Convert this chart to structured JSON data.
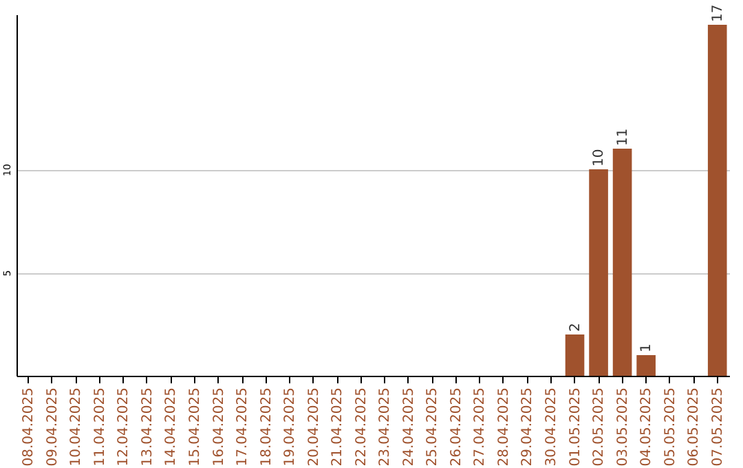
{
  "chart_data": {
    "type": "bar",
    "categories": [
      "08.04.2025",
      "09.04.2025",
      "10.04.2025",
      "11.04.2025",
      "12.04.2025",
      "13.04.2025",
      "14.04.2025",
      "15.04.2025",
      "16.04.2025",
      "17.04.2025",
      "18.04.2025",
      "19.04.2025",
      "20.04.2025",
      "21.04.2025",
      "22.04.2025",
      "23.04.2025",
      "24.04.2025",
      "25.04.2025",
      "26.04.2025",
      "27.04.2025",
      "28.04.2025",
      "29.04.2025",
      "30.04.2025",
      "01.05.2025",
      "02.05.2025",
      "03.05.2025",
      "04.05.2025",
      "05.05.2025",
      "06.05.2025",
      "07.05.2025"
    ],
    "values": [
      0,
      0,
      0,
      0,
      0,
      0,
      0,
      0,
      0,
      0,
      0,
      0,
      0,
      0,
      0,
      0,
      0,
      0,
      0,
      0,
      0,
      0,
      0,
      2,
      10,
      11,
      1,
      0,
      0,
      17
    ],
    "value_labels": [
      null,
      null,
      null,
      null,
      null,
      null,
      null,
      null,
      null,
      null,
      null,
      null,
      null,
      null,
      null,
      null,
      null,
      null,
      null,
      null,
      null,
      null,
      null,
      "2",
      "10",
      "11",
      "1",
      null,
      null,
      "17"
    ],
    "color": "#a0522d",
    "ylim": [
      0,
      17.5
    ],
    "yticks": [
      5,
      10
    ],
    "grid": "y"
  }
}
